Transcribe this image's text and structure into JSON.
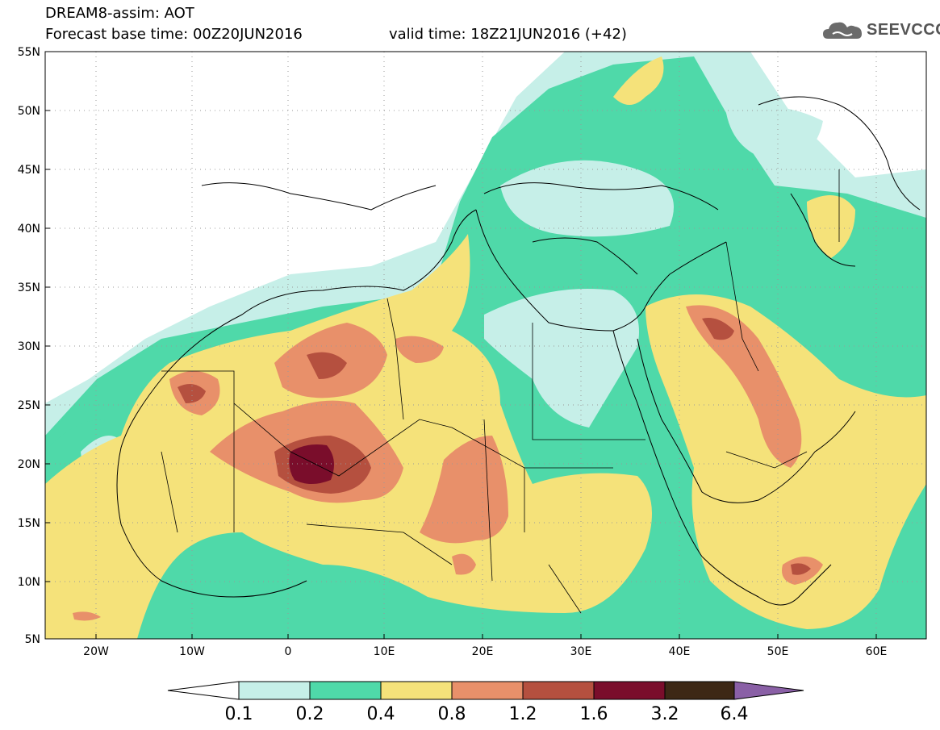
{
  "header": {
    "title_line1": "DREAM8-assim: AOT",
    "title_line2": "Forecast base time: 00Z20JUN2016",
    "valid_time": "valid time: 18Z21JUN2016 (+42)"
  },
  "logo": {
    "text": "SEEVCCC",
    "icon": "cloud-icon"
  },
  "map": {
    "lat_labels": [
      "55N",
      "50N",
      "45N",
      "40N",
      "35N",
      "30N",
      "25N",
      "20N",
      "15N",
      "10N",
      "5N"
    ],
    "lon_labels": [
      "20W",
      "10W",
      "0",
      "10E",
      "20E",
      "30E",
      "40E",
      "50E",
      "60E"
    ],
    "extent": {
      "lon_min": -25,
      "lon_max": 65,
      "lat_min": 5,
      "lat_max": 55
    }
  },
  "colorbar": {
    "labels": [
      "0.1",
      "0.2",
      "0.4",
      "0.8",
      "1.2",
      "1.6",
      "3.2",
      "6.4"
    ],
    "colors": [
      "#ffffff",
      "#c6efe8",
      "#4fd9a9",
      "#f5e27a",
      "#e8906a",
      "#b5503f",
      "#7a0d2b",
      "#3d2815",
      "#8a60a6"
    ]
  },
  "colors": {
    "c0": "#c6efe8",
    "c1": "#4fd9a9",
    "c2": "#f5e27a",
    "c3": "#e8906a",
    "c4": "#b5503f",
    "c5": "#7a0d2b"
  }
}
